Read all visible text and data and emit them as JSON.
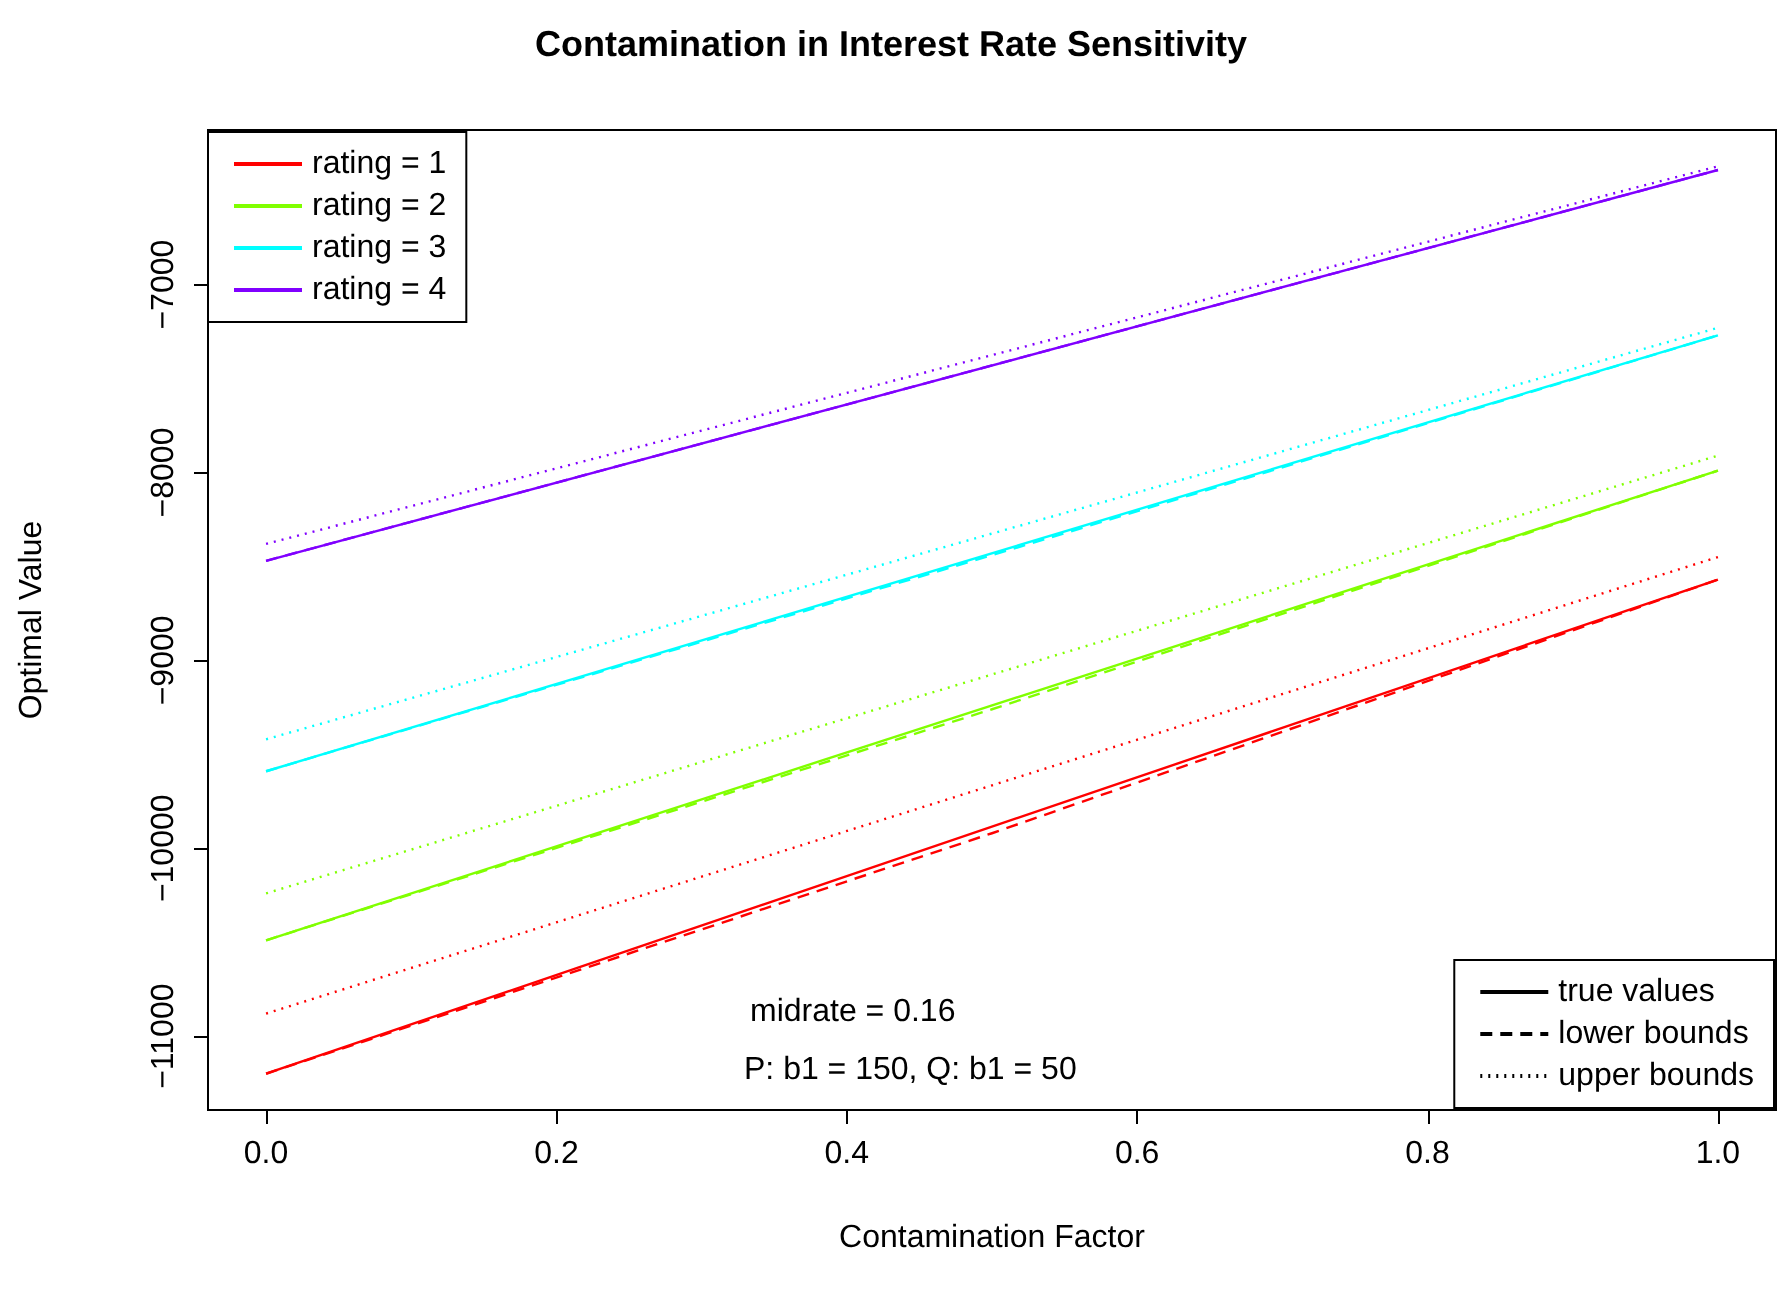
{
  "chart_data": {
    "type": "line",
    "title": "Contamination in Interest Rate Sensitivity",
    "xlabel": "Contamination Factor",
    "ylabel": "Optimal Value",
    "xlim": [
      -0.04,
      1.04
    ],
    "xticks": [
      {
        "value": 0,
        "label": "0.0"
      },
      {
        "value": 0.2,
        "label": "0.2"
      },
      {
        "value": 0.4,
        "label": "0.4"
      },
      {
        "value": 0.6,
        "label": "0.6"
      },
      {
        "value": 0.8,
        "label": "0.8"
      },
      {
        "value": 1,
        "label": "1.0"
      }
    ],
    "ylim": [
      -11393,
      -6177
    ],
    "yticks": [
      -11000,
      -10000,
      -9000,
      -8000,
      -7000
    ],
    "grid": false,
    "legend": "top left",
    "marker": "none",
    "annotations": [
      "midrate = 0.16",
      "P: b1 = 150, Q: b1 = 50"
    ],
    "series": [
      {
        "name": "rating = 1",
        "color": "#ff0000",
        "line_style": "solid",
        "x": [
          0,
          1
        ],
        "values": [
          -11200,
          -8570
        ]
      },
      {
        "name": "rating = 2",
        "color": "#80ff00",
        "line_style": "solid",
        "x": [
          0,
          1
        ],
        "values": [
          -10490,
          -7990
        ]
      },
      {
        "name": "rating = 3",
        "color": "#00ffff",
        "line_style": "solid",
        "x": [
          0,
          1
        ],
        "values": [
          -9590,
          -7270
        ]
      },
      {
        "name": "rating = 4",
        "color": "#8000ff",
        "line_style": "solid",
        "x": [
          0,
          1
        ],
        "values": [
          -8470,
          -6390
        ]
      },
      {
        "color": "#ff0000",
        "line_style": "dashed",
        "x": [
          0,
          0.5,
          1
        ],
        "values": [
          -11200,
          -9920,
          -8570
        ]
      },
      {
        "color": "#80ff00",
        "line_style": "dashed",
        "x": [
          0,
          0.5,
          1
        ],
        "values": [
          -10490,
          -9260,
          -7990
        ]
      },
      {
        "color": "#00ffff",
        "line_style": "dashed",
        "x": [
          0,
          0.5,
          1
        ],
        "values": [
          -9590,
          -8440,
          -7270
        ]
      },
      {
        "color": "#8000ff",
        "line_style": "dashed",
        "x": [
          0,
          0.5,
          1
        ],
        "values": [
          -8470,
          -7430,
          -6390
        ]
      },
      {
        "color": "#ff0000",
        "line_style": "dotted",
        "x": [
          0,
          1
        ],
        "values": [
          -10880,
          -8450
        ]
      },
      {
        "color": "#80ff00",
        "line_style": "dotted",
        "x": [
          0,
          1
        ],
        "values": [
          -10240,
          -7910
        ]
      },
      {
        "color": "#00ffff",
        "line_style": "dotted",
        "x": [
          0,
          1
        ],
        "values": [
          -9420,
          -7230
        ]
      },
      {
        "color": "#8000ff",
        "line_style": "dotted",
        "x": [
          0,
          1
        ],
        "values": [
          -8380,
          -6370
        ]
      },
      {
        "name": "true values",
        "color": "#000000",
        "line_style": "solid"
      },
      {
        "name": "lower bounds",
        "color": "#000000",
        "line_style": "dashed"
      },
      {
        "name": "upper bounds",
        "color": "#000000",
        "line_style": "dotted"
      }
    ]
  }
}
